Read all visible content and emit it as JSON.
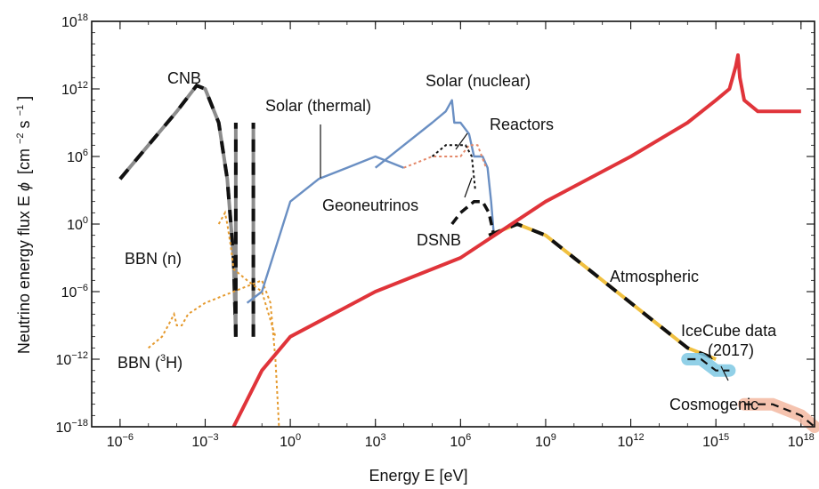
{
  "chart_data": {
    "type": "line",
    "xlabel": "Energy E [eV]",
    "ylabel_base": "Neutrino energy flux E",
    "ylabel_phi": "ϕ",
    "ylabel_units": "[cm",
    "ylabel_exp1": "−2",
    "ylabel_s": "s",
    "ylabel_exp2": "−1",
    "ylabel_close": "]",
    "x_scale": "log",
    "y_scale": "log",
    "xlim": [
      1e-07,
      3e+18
    ],
    "ylim": [
      1e-18,
      1e+18
    ],
    "x_ticks": [
      {
        "base": "10",
        "exp": "−6",
        "value": 1e-06
      },
      {
        "base": "10",
        "exp": "−3",
        "value": 0.001
      },
      {
        "base": "10",
        "exp": "0",
        "value": 1
      },
      {
        "base": "10",
        "exp": "3",
        "value": 1000.0
      },
      {
        "base": "10",
        "exp": "6",
        "value": 1000000.0
      },
      {
        "base": "10",
        "exp": "9",
        "value": 1000000000.0
      },
      {
        "base": "10",
        "exp": "12",
        "value": 1000000000000.0
      },
      {
        "base": "10",
        "exp": "15",
        "value": 1000000000000000.0
      },
      {
        "base": "10",
        "exp": "18",
        "value": 1e+18
      }
    ],
    "y_ticks": [
      {
        "base": "10",
        "exp": "18",
        "value": 1e+18
      },
      {
        "base": "10",
        "exp": "12",
        "value": 1000000000000.0
      },
      {
        "base": "10",
        "exp": "6",
        "value": 1000000.0
      },
      {
        "base": "10",
        "exp": "0",
        "value": 1
      },
      {
        "base": "10",
        "exp": "−6",
        "value": 1e-06
      },
      {
        "base": "10",
        "exp": "−12",
        "value": 1e-12
      },
      {
        "base": "10",
        "exp": "−18",
        "value": 1e-18
      }
    ],
    "series": [
      {
        "name": "CNB",
        "color": "#8c8c8c",
        "style": "dashed-black",
        "x": [
          1e-06,
          1e-05,
          0.0001,
          0.0005,
          0.001,
          0.003,
          0.006,
          0.01,
          0.012
        ],
        "y": [
          10000.0,
          10000000.0,
          10000000000.0,
          2000000000000.0,
          1000000000000.0,
          1000000000.0,
          10000.0,
          0.001,
          1e-10
        ]
      },
      {
        "name": "CNB",
        "color": "#8c8c8c",
        "style": "dashed-black",
        "x": [
          0.012,
          0.012
        ],
        "y": [
          1e-10,
          1000000000.0
        ]
      },
      {
        "name": "CNB",
        "color": "#8c8c8c",
        "style": "dashed-black",
        "x": [
          0.05,
          0.05
        ],
        "y": [
          1e-10,
          1000000000.0
        ]
      },
      {
        "name": "BBN (n)",
        "color": "#e59a2e",
        "style": "dotted",
        "x": [
          0.003,
          0.005,
          0.006,
          0.008,
          0.01,
          0.03,
          0.1,
          0.3
        ],
        "y": [
          1.0,
          10.0,
          1.0,
          0.01,
          0.0001,
          1e-05,
          1e-06,
          1e-10
        ]
      },
      {
        "name": "BBN (³H)",
        "color": "#e59a2e",
        "style": "dotted",
        "x": [
          1e-05,
          3e-05,
          5e-05,
          8e-05,
          0.0001,
          0.00015,
          0.00025,
          0.001,
          0.01,
          0.1,
          0.2,
          0.3,
          0.4
        ],
        "y": [
          1e-11,
          1e-10,
          1e-09,
          1e-08,
          1e-09,
          1e-09,
          1e-08,
          1e-07,
          1e-06,
          1e-05,
          1e-07,
          1e-12,
          1e-18
        ]
      },
      {
        "name": "Solar (thermal)",
        "color": "#6a8fc3",
        "style": "solid",
        "x": [
          0.03,
          0.1,
          1,
          10,
          100,
          1000.0,
          10000.0
        ],
        "y": [
          1e-07,
          1e-06,
          100.0,
          10000.0,
          100000.0,
          1000000.0,
          100000.0
        ]
      },
      {
        "name": "Solar (nuclear)",
        "color": "#6a8fc3",
        "style": "solid",
        "x": [
          1000.0,
          10000.0,
          100000.0,
          300000.0,
          500000.0,
          600000.0,
          1000000.0,
          2000000.0,
          3000000.0,
          4000000.0,
          6000000.0,
          9000000.0,
          12000000.0,
          15000000.0
        ],
        "y": [
          100000.0,
          10000000.0,
          1000000000.0,
          10000000000.0,
          100000000000.0,
          1000000000.0,
          1000000000.0,
          100000000.0,
          1000000.0,
          1000000.0,
          1000000.0,
          100000.0,
          100.0,
          0.1
        ]
      },
      {
        "name": "Reactors",
        "color": "#e4896a",
        "style": "dotted",
        "x": [
          10000.0,
          100000.0,
          1000000.0,
          2000000.0,
          4000000.0,
          8000000.0
        ],
        "y": [
          100000.0,
          1000000.0,
          1000000.0,
          10000000.0,
          10000000.0,
          100000.0
        ]
      },
      {
        "name": "Geoneutrinos",
        "color": "#111111",
        "style": "dotted",
        "x": [
          100000.0,
          300000.0,
          800000.0,
          1500000.0,
          2500000.0,
          3300000.0
        ],
        "y": [
          1000000.0,
          10000000.0,
          10000000.0,
          10000000.0,
          1000000.0,
          1000.0
        ]
      },
      {
        "name": "DSNB",
        "color": "#111111",
        "style": "dashed",
        "x": [
          500000.0,
          1000000.0,
          3000000.0,
          6000000.0,
          10000000.0,
          15000000.0
        ],
        "y": [
          1.0,
          10.0,
          100.0,
          100.0,
          10.0,
          0.1
        ]
      },
      {
        "name": "Atmospheric",
        "color": "#f0c040",
        "style": "dashed-black",
        "x": [
          10000000.0,
          100000000.0,
          1000000000.0,
          10000000000.0,
          100000000000.0,
          1000000000000.0,
          10000000000000.0,
          100000000000000.0,
          1000000000000000.0
        ],
        "y": [
          0.1,
          1.0,
          0.1,
          0.001,
          1e-05,
          1e-07,
          1e-09,
          1e-11,
          1e-12
        ]
      },
      {
        "name": "IceCube data (2017)",
        "color": "#7ec8e3",
        "style": "band",
        "x": [
          100000000000000.0,
          300000000000000.0,
          1000000000000000.0,
          3000000000000000.0
        ],
        "y": [
          1e-12,
          1e-12,
          1e-13,
          1e-13
        ]
      },
      {
        "name": "Cosmogenic",
        "color": "#f3b8a1",
        "style": "band",
        "x": [
          1e+16,
          1e+17,
          1e+18,
          3e+18
        ],
        "y": [
          1e-16,
          1e-16,
          1e-17,
          1e-18
        ]
      },
      {
        "name": "red-curve",
        "color": "#e0343a",
        "style": "solid",
        "x": [
          0.01,
          0.1,
          1,
          1000.0,
          1000000.0,
          1000000000.0,
          1000000000000.0,
          100000000000000.0,
          1000000000000000.0,
          3000000000000000.0,
          5000000000000000.0,
          6000000000000000.0,
          7000000000000000.0,
          1e+16,
          3e+16,
          1e+17,
          1e+18
        ],
        "y": [
          1e-18,
          1e-13,
          1e-10,
          1e-06,
          0.001,
          100.0,
          1000000.0,
          1000000000.0,
          100000000000.0,
          1000000000000.0,
          100000000000000.0,
          1000000000000000.0,
          10000000000000.0,
          100000000000.0,
          10000000000.0,
          10000000000.0,
          10000000000.0
        ]
      }
    ],
    "labels": [
      {
        "id": "cnb",
        "text": "CNB",
        "x": 0.00015,
        "y": 10000000000000.0
      },
      {
        "id": "bbn-n",
        "text": "BBN (n)",
        "x": 1e-05,
        "y": 0.001
      },
      {
        "id": "bbn-3h-a",
        "text": "BBN (",
        "x": 1e-05,
        "y": 1e-13
      },
      {
        "id": "bbn-3h-sup",
        "text": "3",
        "x": 1e-05,
        "y": 1e-13
      },
      {
        "id": "bbn-3h-b",
        "text": "H)",
        "x": 1e-05,
        "y": 1e-13
      },
      {
        "id": "solar-thermal",
        "text": "Solar (thermal)",
        "x": 0.5,
        "y": 3000000000.0
      },
      {
        "id": "solar-nuclear",
        "text": "Solar (nuclear)",
        "x": 1000000.0,
        "y": 1000000000000.0
      },
      {
        "id": "reactors",
        "text": "Reactors",
        "x": 10000000.0,
        "y": 50000000.0
      },
      {
        "id": "geoneutrinos",
        "text": "Geoneutrinos",
        "x": 500.0,
        "y": 10.0
      },
      {
        "id": "dsnb",
        "text": "DSNB",
        "x": 500000.0,
        "y": 0.1
      },
      {
        "id": "atmospheric",
        "text": "Atmospheric",
        "x": 100000000000.0,
        "y": 1e-05
      },
      {
        "id": "icecube-1",
        "text": "IceCube data",
        "x": 100000000000000.0,
        "y": 1e-09
      },
      {
        "id": "icecube-2",
        "text": "(2017)",
        "x": 1000000000000000.0,
        "y": 1e-11
      },
      {
        "id": "cosmogenic",
        "text": "Cosmogenic",
        "x": 100000000000000.0,
        "y": 1e-16
      }
    ]
  }
}
